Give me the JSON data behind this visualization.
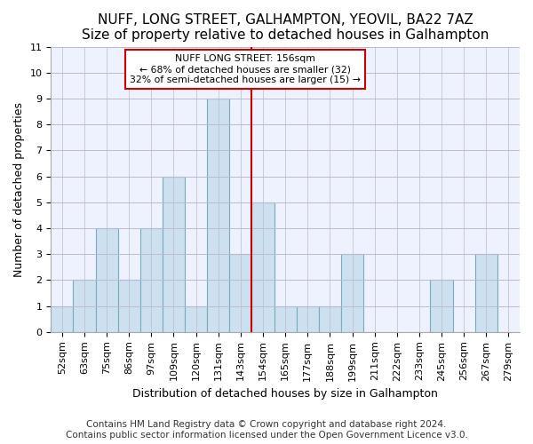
{
  "title": "NUFF, LONG STREET, GALHAMPTON, YEOVIL, BA22 7AZ",
  "subtitle": "Size of property relative to detached houses in Galhampton",
  "xlabel": "Distribution of detached houses by size in Galhampton",
  "ylabel": "Number of detached properties",
  "footnote1": "Contains HM Land Registry data © Crown copyright and database right 2024.",
  "footnote2": "Contains public sector information licensed under the Open Government Licence v3.0.",
  "categories": [
    "52sqm",
    "63sqm",
    "75sqm",
    "86sqm",
    "97sqm",
    "109sqm",
    "120sqm",
    "131sqm",
    "143sqm",
    "154sqm",
    "165sqm",
    "177sqm",
    "188sqm",
    "199sqm",
    "211sqm",
    "222sqm",
    "233sqm",
    "245sqm",
    "256sqm",
    "267sqm",
    "279sqm"
  ],
  "values": [
    1,
    2,
    4,
    2,
    4,
    6,
    1,
    9,
    3,
    5,
    1,
    1,
    1,
    3,
    0,
    0,
    0,
    2,
    0,
    3,
    0
  ],
  "bar_color": "#cce0f0",
  "bar_edge_color": "#7aaabf",
  "marker_index": 8.5,
  "annotation_line1": "NUFF LONG STREET: 156sqm",
  "annotation_line2": "← 68% of detached houses are smaller (32)",
  "annotation_line3": "32% of semi-detached houses are larger (15) →",
  "annotation_box_color": "#ffffff",
  "annotation_box_edge": "#cc0000",
  "marker_line_color": "#cc0000",
  "ylim": [
    0,
    11
  ],
  "yticks": [
    0,
    1,
    2,
    3,
    4,
    5,
    6,
    7,
    8,
    9,
    10,
    11
  ],
  "bg_color": "#ffffff",
  "plot_bg_color": "#eef2ff",
  "grid_color": "#bbbbcc",
  "title_fontsize": 11,
  "axis_label_fontsize": 9,
  "tick_fontsize": 8,
  "footnote_fontsize": 7.5
}
